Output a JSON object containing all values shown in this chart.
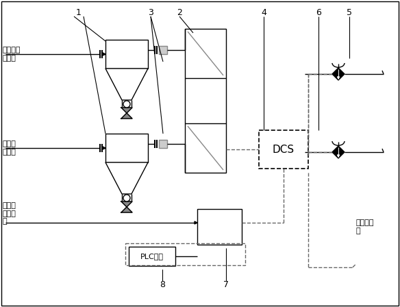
{
  "fig_width": 5.84,
  "fig_height": 4.48,
  "dpi": 100,
  "labels": {
    "label1": "1",
    "label2": "2",
    "label3": "3",
    "label4": "4",
    "label5": "5",
    "label6": "6",
    "label7": "7",
    "label8": "8",
    "text_naoh": "氢氧化钠\n取样管",
    "text_na2co3": "碳酸钠\n取样管",
    "text_brine": "一次盐\n水取样\n管",
    "text_dcs": "DCS",
    "text_plc": "PLC取样",
    "text_adjust": "调节盐比\n例"
  }
}
